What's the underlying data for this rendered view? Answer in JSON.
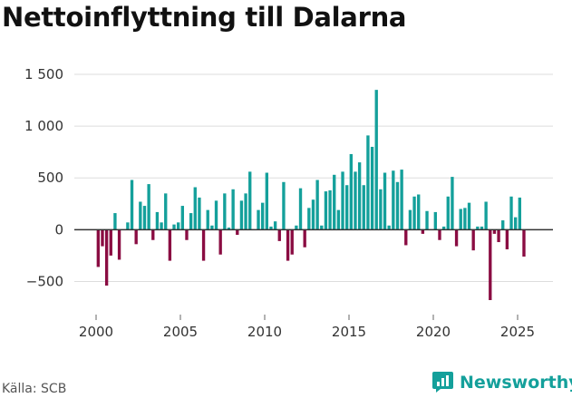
{
  "chart_data": {
    "type": "bar",
    "title": "Nettoinflyttning till Dalarna",
    "xlabel": "",
    "ylabel": "",
    "ylim": [
      -750,
      1500
    ],
    "y_ticks": [
      -500,
      0,
      500,
      1000,
      1500
    ],
    "y_tick_labels": [
      "−500",
      "0",
      "500",
      "1 000",
      "1 500"
    ],
    "x_ticks": [
      2000,
      2005,
      2010,
      2015,
      2020,
      2025
    ],
    "x_tick_labels": [
      "2000",
      "2005",
      "2010",
      "2015",
      "2020",
      "2025"
    ],
    "x_start": 2000,
    "x_end": 2026.25,
    "frequency": "quarterly",
    "positive_color": "#14a09b",
    "negative_color": "#8a0c42",
    "start_period": "2000Q1",
    "values": [
      -360,
      -160,
      -540,
      -250,
      160,
      -290,
      0,
      70,
      480,
      -140,
      270,
      230,
      440,
      -100,
      170,
      70,
      350,
      -300,
      50,
      70,
      230,
      -100,
      160,
      410,
      310,
      -300,
      190,
      40,
      280,
      -240,
      350,
      20,
      390,
      -50,
      280,
      350,
      560,
      0,
      190,
      260,
      550,
      30,
      80,
      -110,
      460,
      -300,
      -240,
      40,
      400,
      -170,
      210,
      290,
      480,
      40,
      370,
      380,
      530,
      190,
      560,
      430,
      730,
      560,
      650,
      430,
      910,
      800,
      1350,
      390,
      550,
      40,
      570,
      460,
      580,
      -150,
      190,
      320,
      340,
      -40,
      180,
      0,
      170,
      -100,
      30,
      320,
      510,
      -160,
      200,
      210,
      260,
      -200,
      30,
      30,
      270,
      -680,
      -40,
      -120,
      90,
      -190,
      320,
      120,
      310,
      -260
    ]
  },
  "footer": {
    "source": "Källa: SCB",
    "brand": "Newsworthy"
  },
  "colors": {
    "brand": "#14a09b",
    "grid": "#dddddd",
    "baseline": "#333333"
  }
}
